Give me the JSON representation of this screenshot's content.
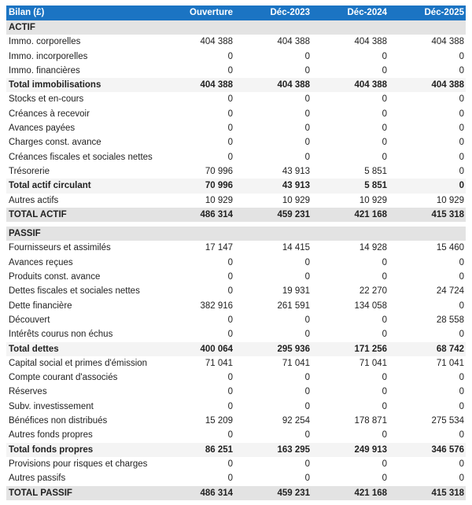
{
  "colors": {
    "header_bg": "#1b74c3",
    "section_bg": "#e3e3e3",
    "subtotal_bg": "#f4f4f4"
  },
  "header": {
    "title": "Bilan (£)",
    "columns": [
      "Ouverture",
      "Déc-2023",
      "Déc-2024",
      "Déc-2025"
    ]
  },
  "rows": [
    {
      "type": "section",
      "label": "ACTIF",
      "values": []
    },
    {
      "type": "item",
      "label": "Immo. corporelles",
      "values": [
        "404 388",
        "404 388",
        "404 388",
        "404 388"
      ]
    },
    {
      "type": "item",
      "label": "Immo. incorporelles",
      "values": [
        "0",
        "0",
        "0",
        "0"
      ]
    },
    {
      "type": "item",
      "label": "Immo. financières",
      "values": [
        "0",
        "0",
        "0",
        "0"
      ]
    },
    {
      "type": "subtotal",
      "label": "Total immobilisations",
      "values": [
        "404 388",
        "404 388",
        "404 388",
        "404 388"
      ]
    },
    {
      "type": "item",
      "label": "Stocks et en-cours",
      "values": [
        "0",
        "0",
        "0",
        "0"
      ]
    },
    {
      "type": "item",
      "label": "Créances à recevoir",
      "values": [
        "0",
        "0",
        "0",
        "0"
      ]
    },
    {
      "type": "item",
      "label": "Avances payées",
      "values": [
        "0",
        "0",
        "0",
        "0"
      ]
    },
    {
      "type": "item",
      "label": "Charges const. avance",
      "values": [
        "0",
        "0",
        "0",
        "0"
      ]
    },
    {
      "type": "item",
      "label": "Créances fiscales et sociales nettes",
      "values": [
        "0",
        "0",
        "0",
        "0"
      ]
    },
    {
      "type": "item",
      "label": "Trésorerie",
      "values": [
        "70 996",
        "43 913",
        "5 851",
        "0"
      ]
    },
    {
      "type": "subtotal",
      "label": "Total actif circulant",
      "values": [
        "70 996",
        "43 913",
        "5 851",
        "0"
      ]
    },
    {
      "type": "item",
      "label": "Autres actifs",
      "values": [
        "10 929",
        "10 929",
        "10 929",
        "10 929"
      ]
    },
    {
      "type": "total",
      "label": "TOTAL ACTIF",
      "values": [
        "486 314",
        "459 231",
        "421 168",
        "415 318"
      ]
    },
    {
      "type": "gap",
      "label": "",
      "values": []
    },
    {
      "type": "section",
      "label": "PASSIF",
      "values": []
    },
    {
      "type": "item",
      "label": "Fournisseurs et assimilés",
      "values": [
        "17 147",
        "14 415",
        "14 928",
        "15 460"
      ]
    },
    {
      "type": "item",
      "label": "Avances reçues",
      "values": [
        "0",
        "0",
        "0",
        "0"
      ]
    },
    {
      "type": "item",
      "label": "Produits const. avance",
      "values": [
        "0",
        "0",
        "0",
        "0"
      ]
    },
    {
      "type": "item",
      "label": "Dettes fiscales et sociales nettes",
      "values": [
        "0",
        "19 931",
        "22 270",
        "24 724"
      ]
    },
    {
      "type": "item",
      "label": "Dette financière",
      "values": [
        "382 916",
        "261 591",
        "134 058",
        "0"
      ]
    },
    {
      "type": "item",
      "label": "Découvert",
      "values": [
        "0",
        "0",
        "0",
        "28 558"
      ]
    },
    {
      "type": "item",
      "label": "Intérêts courus non échus",
      "values": [
        "0",
        "0",
        "0",
        "0"
      ]
    },
    {
      "type": "subtotal",
      "label": "Total dettes",
      "values": [
        "400 064",
        "295 936",
        "171 256",
        "68 742"
      ]
    },
    {
      "type": "item",
      "label": "Capital social et primes d'émission",
      "values": [
        "71 041",
        "71 041",
        "71 041",
        "71 041"
      ]
    },
    {
      "type": "item",
      "label": "Compte courant d'associés",
      "values": [
        "0",
        "0",
        "0",
        "0"
      ]
    },
    {
      "type": "item",
      "label": "Réserves",
      "values": [
        "0",
        "0",
        "0",
        "0"
      ]
    },
    {
      "type": "item",
      "label": "Subv. investissement",
      "values": [
        "0",
        "0",
        "0",
        "0"
      ]
    },
    {
      "type": "item",
      "label": "Bénéfices non distribués",
      "values": [
        "15 209",
        "92 254",
        "178 871",
        "275 534"
      ]
    },
    {
      "type": "item",
      "label": "Autres fonds propres",
      "values": [
        "0",
        "0",
        "0",
        "0"
      ]
    },
    {
      "type": "subtotal",
      "label": "Total fonds propres",
      "values": [
        "86 251",
        "163 295",
        "249 913",
        "346 576"
      ]
    },
    {
      "type": "item",
      "label": "Provisions pour risques et charges",
      "values": [
        "0",
        "0",
        "0",
        "0"
      ]
    },
    {
      "type": "item",
      "label": "Autres passifs",
      "values": [
        "0",
        "0",
        "0",
        "0"
      ]
    },
    {
      "type": "total",
      "label": "TOTAL PASSIF",
      "values": [
        "486 314",
        "459 231",
        "421 168",
        "415 318"
      ]
    }
  ]
}
